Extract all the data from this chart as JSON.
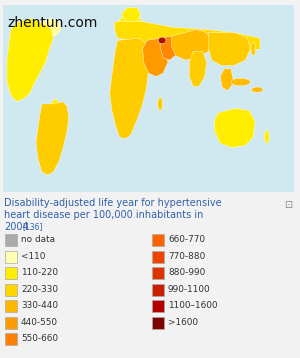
{
  "watermark": "zhentun.com",
  "fig_bg": "#f2f2f2",
  "map_bg": "#ffffff",
  "map_border": "#c0c0c0",
  "title_lines": [
    "Disability-adjusted life year for hypertensive",
    "heart disease per 100,000 inhabitants in",
    "2004."
  ],
  "title_ref": "[136]",
  "title_color": "#3060aa",
  "text_color": "#333333",
  "watermark_color": "#111111",
  "icon_color": "#888888",
  "legend_items_left": [
    {
      "label": "no data",
      "color": "#aaaaaa"
    },
    {
      "label": "<110",
      "color": "#ffffb3"
    },
    {
      "label": "110-220",
      "color": "#ffee00"
    },
    {
      "label": "220-330",
      "color": "#ffd700"
    },
    {
      "label": "330-440",
      "color": "#ffb700"
    },
    {
      "label": "440-550",
      "color": "#ff9a00"
    },
    {
      "label": "550-660",
      "color": "#ff7f00"
    }
  ],
  "legend_items_right": [
    {
      "label": "660-770",
      "color": "#ff6200"
    },
    {
      "label": "770-880",
      "color": "#f04500"
    },
    {
      "label": "880-990",
      "color": "#dd3300"
    },
    {
      "label": "990-1100",
      "color": "#c82000"
    },
    {
      "label": "1100–1600",
      "color": "#b30000"
    },
    {
      "label": ">1600",
      "color": "#7f0000"
    }
  ],
  "ocean_color": "#d0e8f0",
  "na_color": "#ffee00",
  "sa_color": "#ffcc00",
  "eu_color": "#ffee00",
  "af_color": "#ffcc00",
  "ru_color": "#ffdd00",
  "as_color": "#ffcc00",
  "me_color": "#ff9900",
  "me_high_color": "#cc2200",
  "me_red_color": "#aa1100",
  "au_color": "#ffee00",
  "sea_color": "#ffbb00",
  "green_color": "#ffff99"
}
